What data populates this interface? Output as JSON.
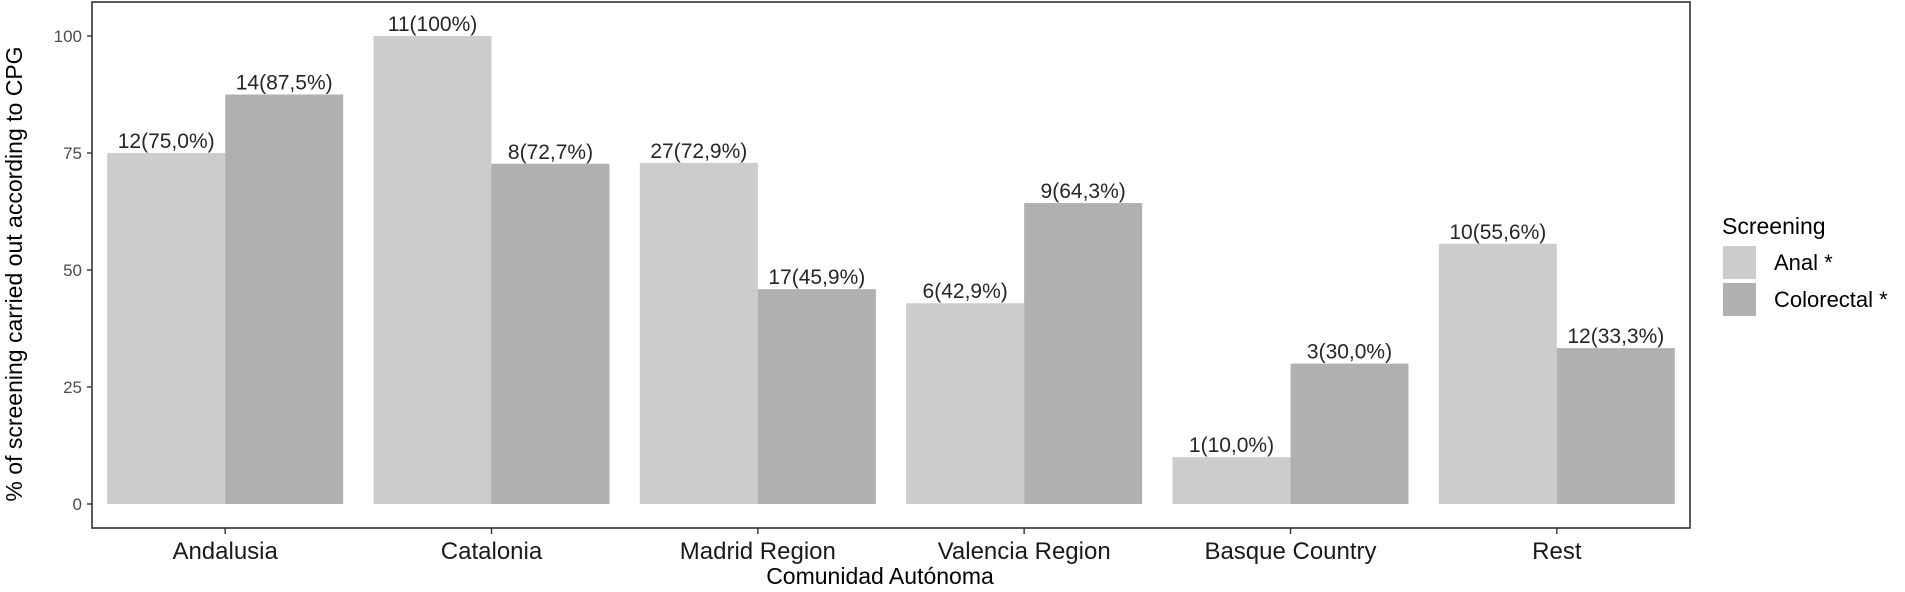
{
  "chart_data": {
    "type": "bar",
    "xlabel": "Comunidad Autónoma",
    "ylabel": "% of screening carried out according to CPG",
    "ylim": [
      0,
      100
    ],
    "yticks": [
      0,
      25,
      50,
      75,
      100
    ],
    "grid": false,
    "legend_position": "right",
    "categories": [
      "Andalusia",
      "Catalonia",
      "Madrid Region",
      "Valencia Region",
      "Basque Country",
      "Rest"
    ],
    "legend_title": "Screening",
    "series": [
      {
        "name": "Anal *",
        "color": "#cccccc",
        "values": [
          75.0,
          100,
          72.9,
          42.9,
          10.0,
          55.6
        ],
        "labels": [
          "12(75,0%)",
          "11(100%)",
          "27(72,9%)",
          "6(42,9%)",
          "1(10,0%)",
          "10(55,6%)"
        ]
      },
      {
        "name": "Colorectal *",
        "color": "#b0b0b0",
        "values": [
          87.5,
          72.7,
          45.9,
          64.3,
          30.0,
          33.3
        ],
        "labels": [
          "14(87,5%)",
          "8(72,7%)",
          "17(45,9%)",
          "9(64,3%)",
          "3(30,0%)",
          "12(33,3%)"
        ]
      }
    ]
  }
}
